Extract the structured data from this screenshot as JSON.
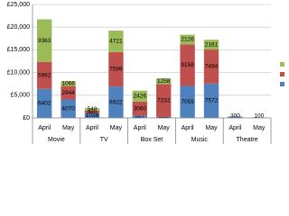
{
  "chart_data": {
    "type": "bar",
    "stacked": true,
    "categories": [
      "April",
      "May",
      "April",
      "May",
      "April",
      "May",
      "April",
      "May",
      "April",
      "May"
    ],
    "groups": [
      "Movie",
      "TV",
      "Box Set",
      "Music",
      "Theatre"
    ],
    "series": [
      {
        "color": "#4f81bd",
        "values": [
          6402,
          4070,
          1038,
          6922,
          527,
          221,
          7055,
          7572,
          300,
          100
        ]
      },
      {
        "color": "#c0504d",
        "values": [
          5962,
          2944,
          580,
          7599,
          3060,
          7232,
          9158,
          7494,
          null,
          null
        ]
      },
      {
        "color": "#9bbb59",
        "values": [
          9363,
          1066,
          548,
          4721,
          2426,
          1258,
          2126,
          2161,
          null,
          null
        ]
      }
    ],
    "ylim": [
      0,
      25000
    ],
    "yticks": [
      {
        "value": 0,
        "label": "£0"
      },
      {
        "value": 5000,
        "label": "£5,000"
      },
      {
        "value": 10000,
        "label": "£10,000"
      },
      {
        "value": 15000,
        "label": "£15,000"
      },
      {
        "value": 20000,
        "label": "£20,000"
      },
      {
        "value": 25000,
        "label": "£25,000"
      }
    ],
    "grid": true,
    "legend": "right"
  }
}
